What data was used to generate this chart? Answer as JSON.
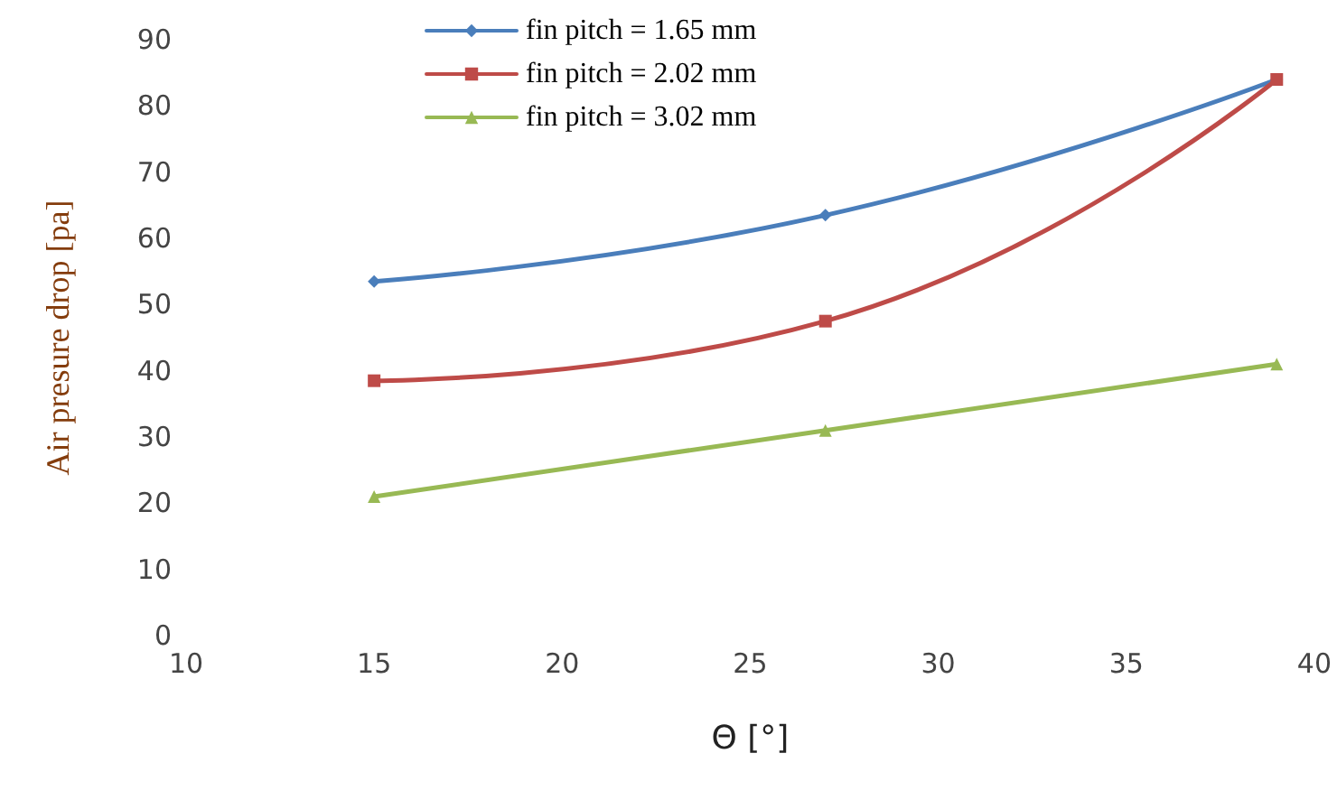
{
  "chart_data": {
    "type": "line",
    "xlabel": "Θ [°]",
    "ylabel": "Air presure drop [pa]",
    "x": [
      15,
      27,
      39
    ],
    "series": [
      {
        "name": "fin pitch = 1.65 mm",
        "color": "#4a7ebb",
        "marker": "diamond",
        "values": [
          53.5,
          63.5,
          84
        ]
      },
      {
        "name": "fin pitch = 2.02 mm",
        "color": "#be4b48",
        "marker": "square",
        "values": [
          38.5,
          47.5,
          84
        ]
      },
      {
        "name": "fin pitch = 3.02 mm",
        "color": "#98b954",
        "marker": "triangle",
        "values": [
          21,
          31,
          41
        ]
      }
    ],
    "xlim": [
      10,
      40
    ],
    "xticks": [
      10,
      15,
      20,
      25,
      30,
      35,
      40
    ],
    "ylim": [
      0,
      90
    ],
    "yticks": [
      0,
      10,
      20,
      30,
      40,
      50,
      60,
      70,
      80,
      90
    ],
    "grid": false,
    "legend": "top",
    "line_style": "solid"
  }
}
